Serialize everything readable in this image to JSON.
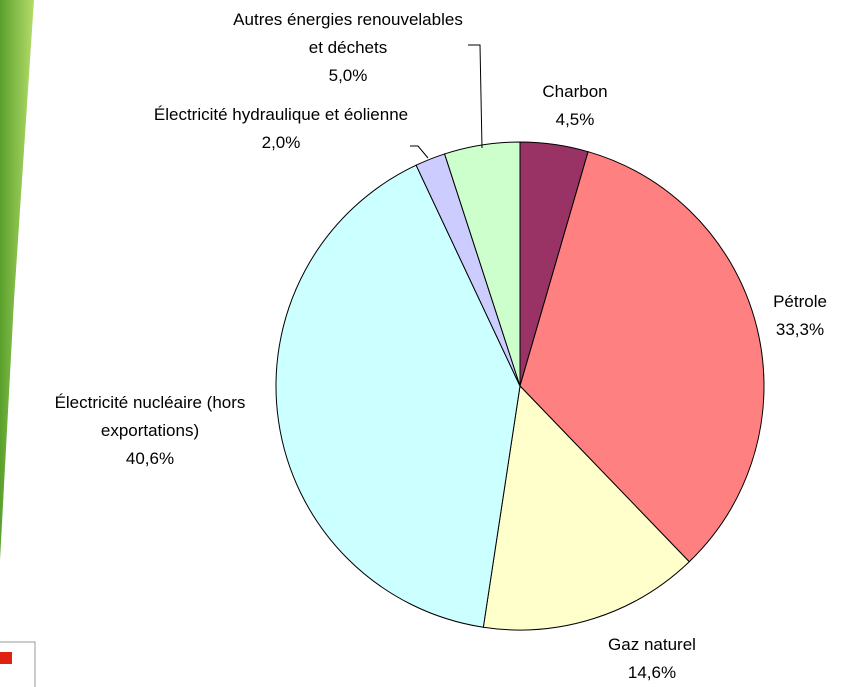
{
  "chart_data": {
    "type": "pie",
    "categories": [
      "Charbon",
      "Pétrole",
      "Gaz naturel",
      "Électricité nucléaire (hors exportations)",
      "Électricité hydraulique et éolienne",
      "Autres énergies renouvelables et déchets"
    ],
    "values": [
      4.5,
      33.3,
      14.6,
      40.6,
      2.0,
      5.0
    ],
    "value_labels": [
      "4,5%",
      "33,3%",
      "14,6%",
      "40,6%",
      "2,0%",
      "5,0%"
    ],
    "colors": [
      "#993366",
      "#ff8080",
      "#ffffcc",
      "#ccffff",
      "#ccccff",
      "#ccffcc"
    ]
  }
}
